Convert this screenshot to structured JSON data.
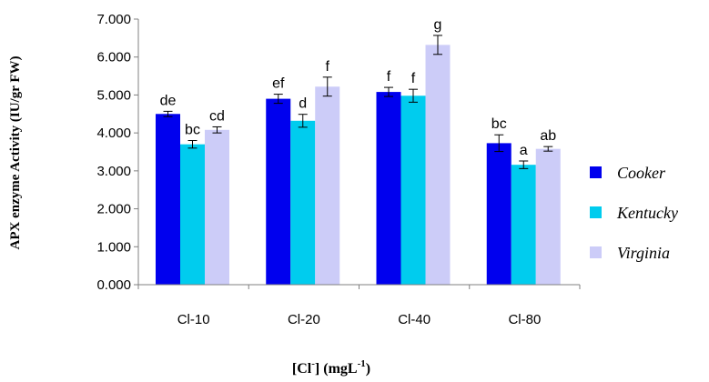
{
  "chart_data": {
    "type": "bar",
    "categories": [
      "Cl-10",
      "Cl-20",
      "Cl-40",
      "Cl-80"
    ],
    "series": [
      {
        "name": "Cooker",
        "color": "#0000ee",
        "values": [
          4.5,
          4.9,
          5.08,
          3.73
        ],
        "errors": [
          0.07,
          0.12,
          0.12,
          0.22
        ],
        "labels": [
          "de",
          "ef",
          "f",
          "bc"
        ]
      },
      {
        "name": "Kentucky",
        "color": "#00ccee",
        "values": [
          3.7,
          4.32,
          4.98,
          3.16
        ],
        "errors": [
          0.1,
          0.17,
          0.17,
          0.1
        ],
        "labels": [
          "bc",
          "d",
          "f",
          "a"
        ]
      },
      {
        "name": "Virginia",
        "color": "#ccccf8",
        "values": [
          4.08,
          5.22,
          6.32,
          3.58
        ],
        "errors": [
          0.08,
          0.25,
          0.25,
          0.06
        ],
        "labels": [
          "cd",
          "f",
          "g",
          "ab"
        ]
      }
    ],
    "ylim": [
      0,
      7
    ],
    "yticks": [
      "0.000",
      "1.000",
      "2.000",
      "3.000",
      "4.000",
      "5.000",
      "6.000",
      "7.000"
    ],
    "ylabel": "APX enzyme Activity (IU/gr FW)",
    "xlabel_parts": {
      "a": "[Cl",
      "b": "-",
      "c": "] (mgL",
      "d": "-1",
      "e": ")"
    },
    "legend_position": "right",
    "grid": false
  }
}
